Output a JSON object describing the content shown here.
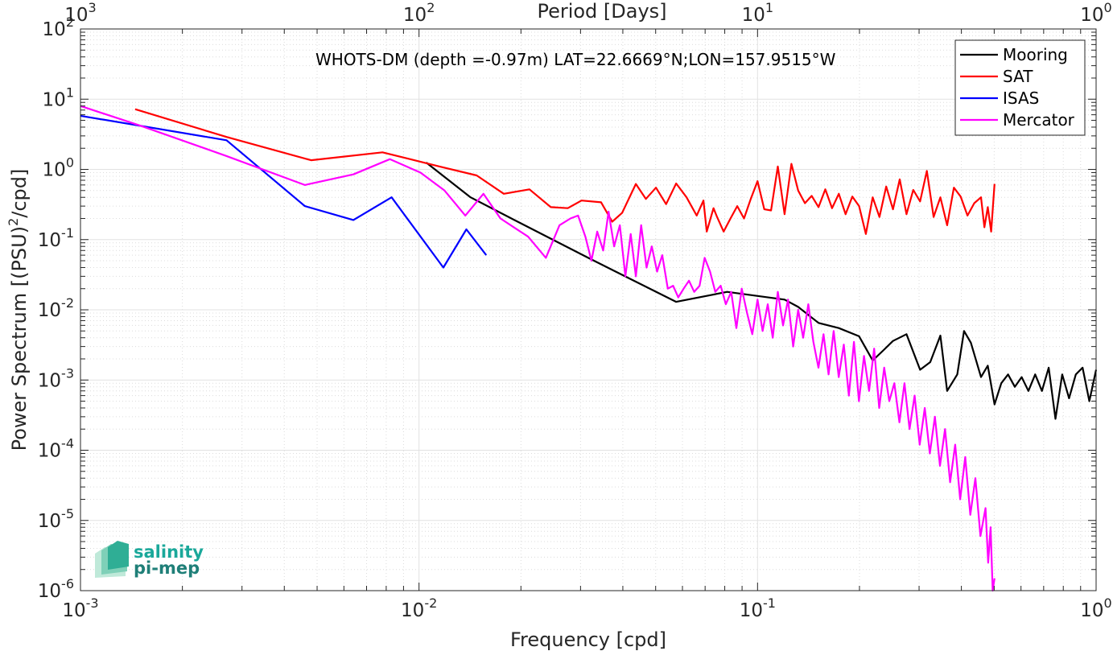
{
  "chart_data": {
    "type": "line",
    "xlabel": "Frequency [cpd]",
    "ylabel_main": "Power Spectrum [(PSU)",
    "ylabel_sup": "2",
    "ylabel_tail": "/cpd]",
    "top_xlabel": "Period [Days]",
    "annotation": "WHOTS-DM (depth =-0.97m) LAT=22.6669°N;LON=157.9515°W",
    "x_scale": "log",
    "y_scale": "log",
    "xlim": [
      0.001,
      1
    ],
    "ylim": [
      1e-06,
      100
    ],
    "grid": true,
    "legend_position": "top-right",
    "x_ticks": [
      {
        "value": 0.001,
        "base": "10",
        "exp": "-3"
      },
      {
        "value": 0.01,
        "base": "10",
        "exp": "-2"
      },
      {
        "value": 0.1,
        "base": "10",
        "exp": "-1"
      },
      {
        "value": 1,
        "base": "10",
        "exp": "0"
      }
    ],
    "y_ticks": [
      {
        "value": 100,
        "base": "10",
        "exp": "2"
      },
      {
        "value": 10,
        "base": "10",
        "exp": "1"
      },
      {
        "value": 1,
        "base": "10",
        "exp": "0"
      },
      {
        "value": 0.1,
        "base": "10",
        "exp": "-1"
      },
      {
        "value": 0.01,
        "base": "10",
        "exp": "-2"
      },
      {
        "value": 0.001,
        "base": "10",
        "exp": "-3"
      },
      {
        "value": 0.0001,
        "base": "10",
        "exp": "-4"
      },
      {
        "value": 1e-05,
        "base": "10",
        "exp": "-5"
      },
      {
        "value": 1e-06,
        "base": "10",
        "exp": "-6"
      }
    ],
    "top_ticks": [
      {
        "value": 0.001,
        "base": "10",
        "exp": "3"
      },
      {
        "value": 0.01,
        "base": "10",
        "exp": "2"
      },
      {
        "value": 0.1,
        "base": "10",
        "exp": "1"
      },
      {
        "value": 1,
        "base": "10",
        "exp": "0"
      }
    ],
    "series": [
      {
        "name": "Mooring",
        "color": "#000000",
        "x": [
          0.0105,
          0.0142,
          0.0205,
          0.0316,
          0.0575,
          0.0813,
          0.1202,
          0.1318,
          0.1514,
          0.1738,
          0.1995,
          0.2188,
          0.2344,
          0.2512,
          0.2754,
          0.302,
          0.3236,
          0.3467,
          0.3631,
          0.389,
          0.4074,
          0.4266,
          0.4571,
          0.4786,
          0.5012,
          0.5248,
          0.5495,
          0.5754,
          0.6026,
          0.631,
          0.6607,
          0.6918,
          0.7244,
          0.7586,
          0.7943,
          0.8318,
          0.871,
          0.912,
          0.955,
          1.0
        ],
        "y": [
          1.25,
          0.4,
          0.16,
          0.055,
          0.013,
          0.018,
          0.014,
          0.011,
          0.0065,
          0.0055,
          0.0042,
          0.0019,
          0.0026,
          0.0036,
          0.0045,
          0.0014,
          0.0018,
          0.0043,
          0.0007,
          0.0012,
          0.005,
          0.0034,
          0.0011,
          0.0016,
          0.00045,
          0.0009,
          0.0012,
          0.0008,
          0.0011,
          0.0007,
          0.0012,
          0.0007,
          0.0015,
          0.00028,
          0.0012,
          0.00055,
          0.0012,
          0.0015,
          0.0005,
          0.0014
        ]
      },
      {
        "name": "SAT",
        "color": "#ff0000",
        "x": [
          0.00145,
          0.0027,
          0.0048,
          0.0078,
          0.0115,
          0.0148,
          0.0178,
          0.0212,
          0.0245,
          0.0275,
          0.0302,
          0.0345,
          0.0372,
          0.0398,
          0.0437,
          0.0468,
          0.0501,
          0.0537,
          0.0575,
          0.0617,
          0.0661,
          0.0692,
          0.0708,
          0.0741,
          0.0759,
          0.0794,
          0.0832,
          0.0871,
          0.0912,
          0.0955,
          0.1,
          0.1047,
          0.1096,
          0.1148,
          0.1202,
          0.1259,
          0.1318,
          0.138,
          0.1445,
          0.1514,
          0.1585,
          0.166,
          0.1738,
          0.182,
          0.1905,
          0.1995,
          0.2089,
          0.2188,
          0.2291,
          0.2399,
          0.2512,
          0.263,
          0.2754,
          0.2884,
          0.302,
          0.3162,
          0.3311,
          0.3467,
          0.3631,
          0.3802,
          0.3981,
          0.4169,
          0.4365,
          0.4571,
          0.4677,
          0.4786,
          0.4898,
          0.5012
        ],
        "y": [
          7.2,
          2.9,
          1.35,
          1.75,
          1.1,
          0.82,
          0.45,
          0.52,
          0.29,
          0.28,
          0.36,
          0.34,
          0.18,
          0.24,
          0.62,
          0.38,
          0.55,
          0.32,
          0.63,
          0.4,
          0.22,
          0.36,
          0.13,
          0.28,
          0.21,
          0.13,
          0.2,
          0.3,
          0.2,
          0.38,
          0.68,
          0.27,
          0.26,
          1.1,
          0.23,
          1.2,
          0.5,
          0.33,
          0.42,
          0.29,
          0.52,
          0.28,
          0.45,
          0.23,
          0.41,
          0.3,
          0.12,
          0.4,
          0.21,
          0.57,
          0.27,
          0.72,
          0.23,
          0.51,
          0.35,
          0.95,
          0.21,
          0.4,
          0.16,
          0.55,
          0.41,
          0.22,
          0.33,
          0.4,
          0.15,
          0.29,
          0.13,
          0.62
        ]
      },
      {
        "name": "ISAS",
        "color": "#0000ff",
        "x": [
          0.001,
          0.0027,
          0.0046,
          0.0064,
          0.0083,
          0.0118,
          0.0138,
          0.0158
        ],
        "y": [
          5.8,
          2.6,
          0.3,
          0.19,
          0.4,
          0.04,
          0.14,
          0.06
        ]
      },
      {
        "name": "Mercator",
        "color": "#ff00ff",
        "x": [
          0.001,
          0.0015,
          0.0027,
          0.0046,
          0.0064,
          0.0082,
          0.0101,
          0.0119,
          0.0137,
          0.0155,
          0.0174,
          0.021,
          0.0237,
          0.026,
          0.028,
          0.0295,
          0.031,
          0.0323,
          0.0336,
          0.035,
          0.0363,
          0.0377,
          0.0392,
          0.0407,
          0.0422,
          0.0437,
          0.0453,
          0.047,
          0.0487,
          0.0505,
          0.0523,
          0.0543,
          0.0563,
          0.0583,
          0.0605,
          0.0627,
          0.065,
          0.0674,
          0.0698,
          0.0724,
          0.075,
          0.0778,
          0.0806,
          0.0836,
          0.0866,
          0.0898,
          0.0931,
          0.0965,
          0.1,
          0.1035,
          0.1072,
          0.1109,
          0.1148,
          0.1189,
          0.123,
          0.1274,
          0.1318,
          0.1364,
          0.1412,
          0.1462,
          0.1513,
          0.1566,
          0.1621,
          0.1678,
          0.1737,
          0.1798,
          0.1861,
          0.1926,
          0.1993,
          0.2063,
          0.2135,
          0.221,
          0.2287,
          0.2367,
          0.245,
          0.2536,
          0.2625,
          0.2717,
          0.2812,
          0.2911,
          0.3013,
          0.3118,
          0.3228,
          0.3341,
          0.3458,
          0.3579,
          0.3704,
          0.3834,
          0.3968,
          0.4107,
          0.4251,
          0.44,
          0.4554,
          0.4713,
          0.48,
          0.488,
          0.495,
          0.5012
        ],
        "y": [
          8.0,
          4.2,
          1.55,
          0.6,
          0.85,
          1.4,
          0.9,
          0.5,
          0.22,
          0.45,
          0.2,
          0.11,
          0.055,
          0.16,
          0.2,
          0.22,
          0.11,
          0.05,
          0.13,
          0.07,
          0.25,
          0.08,
          0.16,
          0.03,
          0.12,
          0.03,
          0.16,
          0.04,
          0.08,
          0.035,
          0.06,
          0.02,
          0.022,
          0.015,
          0.02,
          0.026,
          0.018,
          0.022,
          0.055,
          0.035,
          0.018,
          0.022,
          0.012,
          0.018,
          0.0055,
          0.02,
          0.009,
          0.0045,
          0.014,
          0.005,
          0.012,
          0.004,
          0.018,
          0.006,
          0.014,
          0.003,
          0.01,
          0.004,
          0.012,
          0.0035,
          0.0015,
          0.0045,
          0.0012,
          0.005,
          0.0011,
          0.0032,
          0.0006,
          0.0035,
          0.0005,
          0.0022,
          0.0007,
          0.0028,
          0.0004,
          0.0015,
          0.0005,
          0.0009,
          0.00025,
          0.0009,
          0.0002,
          0.0006,
          0.00012,
          0.0004,
          9e-05,
          0.0003,
          6e-05,
          0.0002,
          3.5e-05,
          0.00012,
          2e-05,
          8e-05,
          1.2e-05,
          4e-05,
          6e-06,
          1.5e-05,
          2.5e-06,
          8e-06,
          1e-06,
          1.5e-06
        ]
      }
    ]
  },
  "logo": {
    "line1": "salinity",
    "line2": "pi-mep"
  }
}
